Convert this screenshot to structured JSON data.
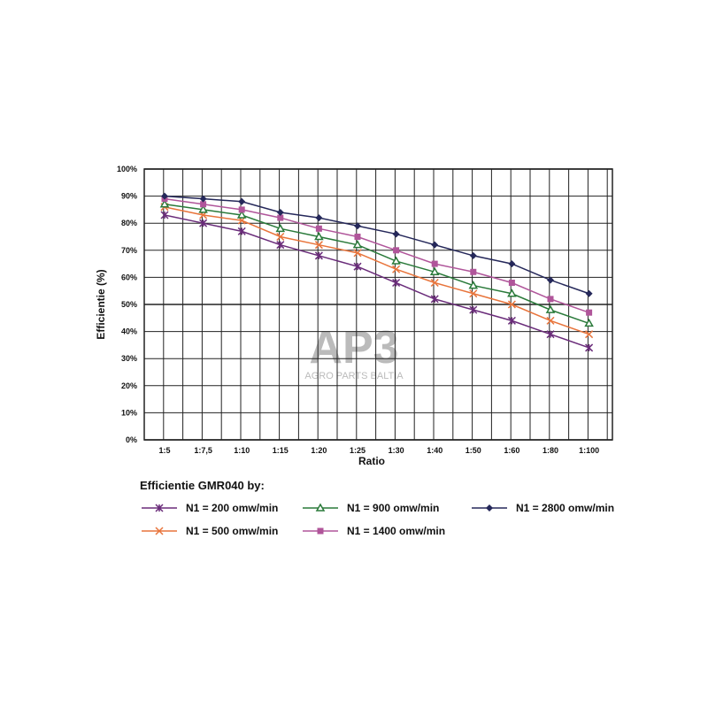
{
  "chart_data": {
    "type": "line",
    "xlabel": "Ratio",
    "ylabel": "Efficientie (%)",
    "ylim": [
      0,
      100
    ],
    "yticks": [
      "0%",
      "10%",
      "20%",
      "30%",
      "40%",
      "50%",
      "60%",
      "70%",
      "80%",
      "90%",
      "100%"
    ],
    "categories": [
      "1:5",
      "1:7,5",
      "1:10",
      "1:15",
      "1:20",
      "1:25",
      "1:30",
      "1:40",
      "1:50",
      "1:60",
      "1:80",
      "1:100"
    ],
    "grid": true,
    "legend_title": "Efficientie GMR040 by:",
    "legend_placement": "bottom",
    "series": [
      {
        "name": "N1 = 200 omw/min",
        "color": "#6a2c7a",
        "marker": "asterisk",
        "values": [
          83,
          80,
          77,
          72,
          68,
          64,
          58,
          52,
          48,
          44,
          39,
          34
        ]
      },
      {
        "name": "N1 = 500 omw/min",
        "color": "#e8743b",
        "marker": "x",
        "values": [
          86,
          83,
          81,
          75,
          72,
          69,
          63,
          58,
          54,
          50,
          44,
          39
        ]
      },
      {
        "name": "N1 = 900 omw/min",
        "color": "#2a7a3a",
        "marker": "triangle",
        "values": [
          87,
          85,
          83,
          78,
          75,
          72,
          66,
          62,
          57,
          54,
          48,
          43
        ]
      },
      {
        "name": "N1 = 1400 omw/min",
        "color": "#b0559a",
        "marker": "square",
        "values": [
          89,
          87,
          85,
          82,
          78,
          75,
          70,
          65,
          62,
          58,
          52,
          47
        ]
      },
      {
        "name": "N1 = 2800 omw/min",
        "color": "#25285a",
        "marker": "diamond",
        "values": [
          90,
          89,
          88,
          84,
          82,
          79,
          76,
          72,
          68,
          65,
          59,
          54
        ]
      }
    ]
  },
  "watermark": {
    "logo": "AP3",
    "text": "AGRO PARTS BALTIA"
  }
}
